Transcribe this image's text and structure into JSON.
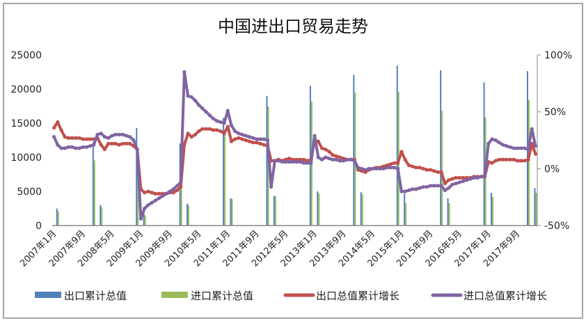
{
  "chart_data": {
    "type": "bar+line",
    "title": "中国进出口贸易走势",
    "x_start": "2007-01",
    "x_end": "2018-02",
    "x_tick_labels": [
      "2007年1月",
      "2007年9月",
      "2008年5月",
      "2009年1月",
      "2009年9月",
      "2010年5月",
      "2011年1月",
      "2011年9月",
      "2012年5月",
      "2013年1月",
      "2013年9月",
      "2014年5月",
      "2015年1月",
      "2015年9月",
      "2016年5月",
      "2017年1月",
      "2017年9月"
    ],
    "x_tick_dates": [
      "2007-01",
      "2007-09",
      "2008-05",
      "2009-01",
      "2009-09",
      "2010-05",
      "2011-01",
      "2011-09",
      "2012-05",
      "2013-01",
      "2013-09",
      "2014-05",
      "2015-01",
      "2015-09",
      "2016-05",
      "2017-01",
      "2017-09"
    ],
    "y_left": {
      "range": [
        0,
        25000
      ],
      "ticks": [
        0,
        5000,
        10000,
        15000,
        20000,
        25000
      ],
      "tick_labels": [
        "0",
        "5000",
        "10000",
        "15000",
        "20000",
        "25000"
      ]
    },
    "y_right": {
      "range": [
        -50,
        100
      ],
      "ticks": [
        -50,
        0,
        50,
        100
      ],
      "tick_labels": [
        "-50%",
        "0%",
        "50%",
        "100%"
      ]
    },
    "grid": false,
    "legend_position": "bottom",
    "bar_series": [
      {
        "name": "出口累计总值",
        "color": "#4f81bd",
        "axis": "left",
        "points": [
          [
            "2007-02",
            2500
          ],
          [
            "2007-12",
            12180
          ],
          [
            "2008-02",
            3000
          ],
          [
            "2008-12",
            14285
          ],
          [
            "2009-02",
            2400
          ],
          [
            "2009-12",
            12017
          ],
          [
            "2010-02",
            3200
          ],
          [
            "2010-12",
            15779
          ],
          [
            "2011-02",
            4000
          ],
          [
            "2011-12",
            18986
          ],
          [
            "2012-02",
            4330
          ],
          [
            "2012-12",
            20489
          ],
          [
            "2013-02",
            5000
          ],
          [
            "2013-12",
            22100
          ],
          [
            "2014-02",
            4900
          ],
          [
            "2014-12",
            23427
          ],
          [
            "2015-02",
            4700
          ],
          [
            "2015-12",
            22765
          ],
          [
            "2016-02",
            4000
          ],
          [
            "2016-12",
            20976
          ],
          [
            "2017-02",
            4800
          ],
          [
            "2017-12",
            22635
          ],
          [
            "2018-02",
            5500
          ]
        ]
      },
      {
        "name": "进口累计总值",
        "color": "#9bbb59",
        "axis": "left",
        "points": [
          [
            "2007-02",
            2100
          ],
          [
            "2007-12",
            9558
          ],
          [
            "2008-02",
            2700
          ],
          [
            "2008-12",
            11331
          ],
          [
            "2009-02",
            1500
          ],
          [
            "2009-12",
            10056
          ],
          [
            "2010-02",
            3000
          ],
          [
            "2010-12",
            13948
          ],
          [
            "2011-02",
            3900
          ],
          [
            "2011-12",
            17435
          ],
          [
            "2012-02",
            4280
          ],
          [
            "2012-12",
            18178
          ],
          [
            "2013-02",
            4700
          ],
          [
            "2013-12",
            19500
          ],
          [
            "2014-02",
            4600
          ],
          [
            "2014-12",
            19603
          ],
          [
            "2015-02",
            3300
          ],
          [
            "2015-12",
            16820
          ],
          [
            "2016-02",
            3300
          ],
          [
            "2016-12",
            15874
          ],
          [
            "2017-02",
            4200
          ],
          [
            "2017-12",
            18410
          ],
          [
            "2018-02",
            4800
          ]
        ]
      }
    ],
    "line_series": [
      {
        "name": "出口总值累计增长",
        "color": "#c0504d",
        "axis": "right",
        "unit": "%",
        "values": [
          36,
          41,
          34,
          28,
          27,
          27,
          27,
          27,
          26,
          26,
          26,
          26,
          27,
          21,
          17,
          22,
          22,
          22,
          21,
          22,
          22,
          22,
          20,
          17,
          -18,
          -21,
          -20,
          -21,
          -22,
          -22,
          -22,
          -22,
          -21,
          -21,
          -19,
          -16,
          21,
          31,
          28,
          30,
          33,
          35,
          35,
          35,
          34,
          34,
          33,
          31,
          37,
          24,
          26,
          27,
          26,
          25,
          24,
          23,
          23,
          22,
          21,
          20,
          7,
          7,
          8,
          7,
          8,
          9,
          8,
          8,
          8,
          8,
          7,
          8,
          25,
          24,
          18,
          17,
          15,
          12,
          11,
          10,
          9,
          8,
          8,
          8,
          -1,
          -2,
          -3,
          -1,
          0,
          1,
          1,
          2,
          3,
          4,
          5,
          5,
          15,
          8,
          3,
          2,
          1,
          1,
          0,
          -1,
          -1,
          -2,
          -3,
          -3,
          -13,
          -10,
          -9,
          -8,
          -8,
          -8,
          -8,
          -8,
          -7,
          -7,
          -7,
          -7,
          6,
          5,
          7,
          8,
          8,
          8,
          8,
          8,
          7,
          7,
          7,
          8,
          22,
          13
        ]
      },
      {
        "name": "进口总值累计增长",
        "color": "#8064a2",
        "axis": "right",
        "unit": "%",
        "values": [
          28,
          21,
          18,
          18,
          19,
          19,
          18,
          18,
          19,
          19,
          20,
          21,
          30,
          31,
          28,
          27,
          29,
          30,
          30,
          30,
          29,
          28,
          25,
          17,
          -44,
          -35,
          -32,
          -30,
          -28,
          -26,
          -24,
          -22,
          -20,
          -18,
          -15,
          -12,
          85,
          64,
          63,
          60,
          56,
          53,
          50,
          47,
          44,
          42,
          41,
          40,
          51,
          38,
          33,
          31,
          30,
          29,
          28,
          27,
          26,
          26,
          26,
          25,
          -16,
          7,
          7,
          6,
          6,
          6,
          6,
          6,
          6,
          5,
          5,
          5,
          29,
          10,
          8,
          10,
          9,
          8,
          8,
          7,
          7,
          8,
          8,
          7,
          1,
          0,
          -1,
          0,
          0,
          0,
          0,
          0,
          1,
          1,
          1,
          0,
          -20,
          -20,
          -19,
          -18,
          -18,
          -17,
          -16,
          -16,
          -15,
          -15,
          -15,
          -15,
          -19,
          -17,
          -14,
          -13,
          -12,
          -11,
          -10,
          -9,
          -8,
          -8,
          -7,
          -6,
          22,
          26,
          25,
          23,
          21,
          20,
          19,
          18,
          18,
          18,
          18,
          17,
          35,
          20
        ]
      }
    ]
  }
}
